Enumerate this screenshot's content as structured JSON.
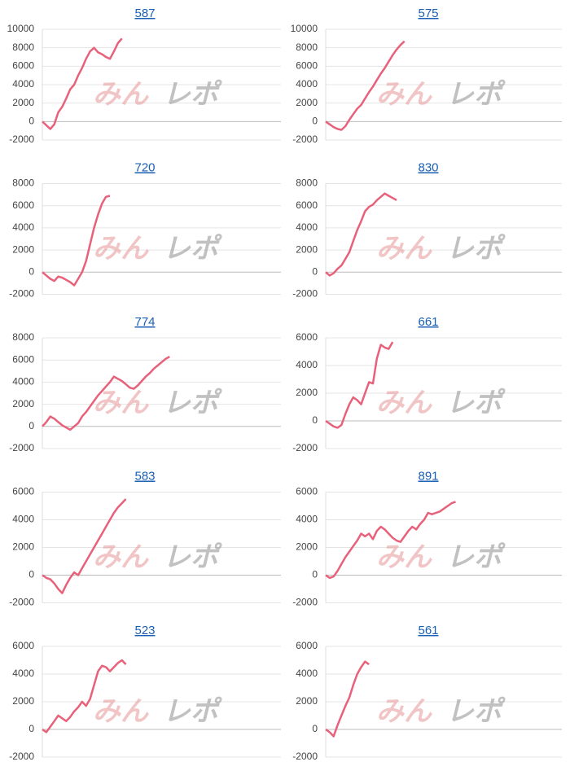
{
  "watermark": [
    "みん",
    "レポ"
  ],
  "chart_data": [
    {
      "type": "line",
      "title": "587",
      "color": "#e8617a",
      "grid": true,
      "ylim": [
        -2000,
        10000
      ],
      "yticks": [
        -2000,
        0,
        2000,
        4000,
        6000,
        8000,
        10000
      ],
      "values": [
        0,
        -400,
        -800,
        -300,
        1000,
        1600,
        2500,
        3500,
        4000,
        5000,
        5800,
        6800,
        7600,
        8000,
        7500,
        7300,
        7000,
        6800,
        7600,
        8500,
        9000
      ]
    },
    {
      "type": "line",
      "title": "575",
      "color": "#e8617a",
      "grid": true,
      "ylim": [
        -2000,
        10000
      ],
      "yticks": [
        -2000,
        0,
        2000,
        4000,
        6000,
        8000,
        10000
      ],
      "values": [
        0,
        -300,
        -600,
        -800,
        -900,
        -500,
        200,
        800,
        1400,
        1800,
        2500,
        3200,
        3800,
        4500,
        5200,
        5800,
        6500,
        7200,
        7800,
        8300,
        8700
      ]
    },
    {
      "type": "line",
      "title": "720",
      "color": "#e8617a",
      "grid": true,
      "ylim": [
        -2000,
        8000
      ],
      "yticks": [
        -2000,
        0,
        2000,
        4000,
        6000,
        8000
      ],
      "values": [
        0,
        -300,
        -600,
        -800,
        -400,
        -500,
        -700,
        -900,
        -1200,
        -600,
        0,
        1000,
        2500,
        4000,
        5200,
        6200,
        6800,
        6900
      ]
    },
    {
      "type": "line",
      "title": "830",
      "color": "#e8617a",
      "grid": true,
      "ylim": [
        -2000,
        8000
      ],
      "yticks": [
        -2000,
        0,
        2000,
        4000,
        6000,
        8000
      ],
      "values": [
        0,
        -300,
        -100,
        300,
        600,
        1200,
        1800,
        2800,
        3800,
        4600,
        5500,
        5900,
        6100,
        6500,
        6800,
        7100,
        6900,
        6700,
        6500
      ]
    },
    {
      "type": "line",
      "title": "774",
      "color": "#e8617a",
      "grid": true,
      "ylim": [
        -2000,
        8000
      ],
      "yticks": [
        -2000,
        0,
        2000,
        4000,
        6000,
        8000
      ],
      "values": [
        0,
        400,
        900,
        700,
        400,
        100,
        -100,
        -300,
        0,
        300,
        900,
        1300,
        1800,
        2300,
        2800,
        3200,
        3600,
        4000,
        4500,
        4300,
        4100,
        3800,
        3500,
        3400,
        3700,
        4100,
        4500,
        4800,
        5200,
        5500,
        5800,
        6100,
        6300
      ]
    },
    {
      "type": "line",
      "title": "661",
      "color": "#e8617a",
      "grid": true,
      "ylim": [
        -2000,
        6000
      ],
      "yticks": [
        -2000,
        0,
        2000,
        4000,
        6000
      ],
      "values": [
        0,
        -200,
        -400,
        -500,
        -300,
        500,
        1200,
        1700,
        1500,
        1200,
        2000,
        2800,
        2700,
        4500,
        5500,
        5300,
        5200,
        5700
      ]
    },
    {
      "type": "line",
      "title": "583",
      "color": "#e8617a",
      "grid": true,
      "ylim": [
        -2000,
        6000
      ],
      "yticks": [
        -2000,
        0,
        2000,
        4000,
        6000
      ],
      "values": [
        0,
        -200,
        -300,
        -600,
        -1000,
        -1300,
        -700,
        -200,
        200,
        0,
        500,
        1000,
        1500,
        2000,
        2500,
        3000,
        3500,
        4000,
        4500,
        4900,
        5200,
        5500
      ]
    },
    {
      "type": "line",
      "title": "891",
      "color": "#e8617a",
      "grid": true,
      "ylim": [
        -2000,
        6000
      ],
      "yticks": [
        -2000,
        0,
        2000,
        4000,
        6000
      ],
      "values": [
        0,
        -200,
        -100,
        300,
        800,
        1300,
        1700,
        2100,
        2500,
        3000,
        2800,
        3000,
        2600,
        3200,
        3500,
        3300,
        3000,
        2700,
        2500,
        2400,
        2800,
        3200,
        3500,
        3300,
        3700,
        4000,
        4500,
        4400,
        4500,
        4600,
        4800,
        5000,
        5200,
        5300
      ]
    },
    {
      "type": "line",
      "title": "523",
      "color": "#e8617a",
      "grid": true,
      "ylim": [
        -2000,
        6000
      ],
      "yticks": [
        -2000,
        0,
        2000,
        4000,
        6000
      ],
      "values": [
        0,
        -200,
        200,
        600,
        1000,
        800,
        600,
        900,
        1300,
        1600,
        2000,
        1700,
        2200,
        3200,
        4200,
        4600,
        4500,
        4200,
        4500,
        4800,
        5000,
        4700
      ]
    },
    {
      "type": "line",
      "title": "561",
      "color": "#e8617a",
      "grid": true,
      "ylim": [
        -2000,
        6000
      ],
      "yticks": [
        -2000,
        0,
        2000,
        4000,
        6000
      ],
      "values": [
        0,
        -200,
        -500,
        300,
        1000,
        1700,
        2300,
        3200,
        4000,
        4500,
        4900,
        4700
      ]
    }
  ]
}
